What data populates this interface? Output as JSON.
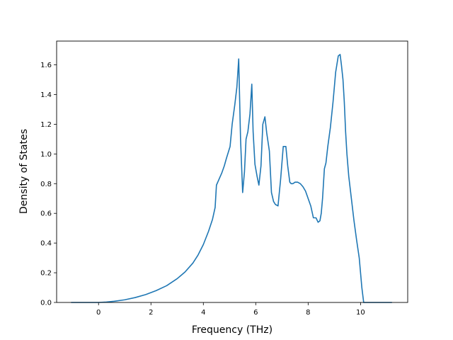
{
  "chart_data": {
    "type": "line",
    "title": "",
    "xlabel": "Frequency (THz)",
    "ylabel": "Density of States",
    "xlim": [
      -1.6,
      11.8
    ],
    "ylim": [
      0.0,
      1.76
    ],
    "xticks": [
      0,
      2,
      4,
      6,
      8,
      10
    ],
    "yticks": [
      0.0,
      0.2,
      0.4,
      0.6,
      0.8,
      1.0,
      1.2,
      1.4,
      1.6
    ],
    "grid": false,
    "line_color": "#1f77b4",
    "series": [
      {
        "x": [
          -1.05,
          0.0,
          0.3,
          0.6,
          1.0,
          1.4,
          1.8,
          2.2,
          2.6,
          3.0,
          3.3,
          3.6,
          3.8,
          4.0,
          4.2,
          4.35,
          4.45,
          4.5,
          4.6,
          4.7,
          4.8,
          4.88,
          4.95,
          5.02,
          5.1,
          5.2,
          5.28,
          5.35,
          5.42,
          5.5,
          5.57,
          5.63,
          5.7,
          5.78,
          5.85,
          5.9,
          5.97,
          6.05,
          6.12,
          6.2,
          6.27,
          6.35,
          6.42,
          6.47,
          6.52,
          6.6,
          6.68,
          6.75,
          6.85,
          6.95,
          7.05,
          7.15,
          7.22,
          7.3,
          7.35,
          7.42,
          7.5,
          7.6,
          7.7,
          7.8,
          7.9,
          8.0,
          8.1,
          8.2,
          8.3,
          8.38,
          8.45,
          8.5,
          8.55,
          8.62,
          8.68,
          8.75,
          8.85,
          8.95,
          9.05,
          9.15,
          9.22,
          9.27,
          9.33,
          9.38,
          9.43,
          9.48,
          9.55,
          9.65,
          9.75,
          9.85,
          9.95,
          10.05,
          10.12,
          11.2
        ],
        "y": [
          0.0,
          0.0,
          0.003,
          0.008,
          0.018,
          0.033,
          0.053,
          0.08,
          0.113,
          0.16,
          0.205,
          0.265,
          0.32,
          0.39,
          0.48,
          0.56,
          0.64,
          0.79,
          0.83,
          0.87,
          0.92,
          0.97,
          1.01,
          1.05,
          1.2,
          1.33,
          1.45,
          1.64,
          1.1,
          0.74,
          0.88,
          1.1,
          1.15,
          1.27,
          1.47,
          1.15,
          0.93,
          0.85,
          0.79,
          0.92,
          1.2,
          1.25,
          1.14,
          1.08,
          1.02,
          0.74,
          0.68,
          0.66,
          0.65,
          0.83,
          1.05,
          1.05,
          0.92,
          0.81,
          0.8,
          0.8,
          0.81,
          0.81,
          0.8,
          0.78,
          0.75,
          0.7,
          0.65,
          0.57,
          0.57,
          0.54,
          0.55,
          0.6,
          0.7,
          0.9,
          0.94,
          1.05,
          1.18,
          1.35,
          1.55,
          1.66,
          1.67,
          1.6,
          1.5,
          1.35,
          1.15,
          1.0,
          0.85,
          0.7,
          0.55,
          0.42,
          0.3,
          0.1,
          0.0,
          0.0
        ]
      }
    ]
  }
}
